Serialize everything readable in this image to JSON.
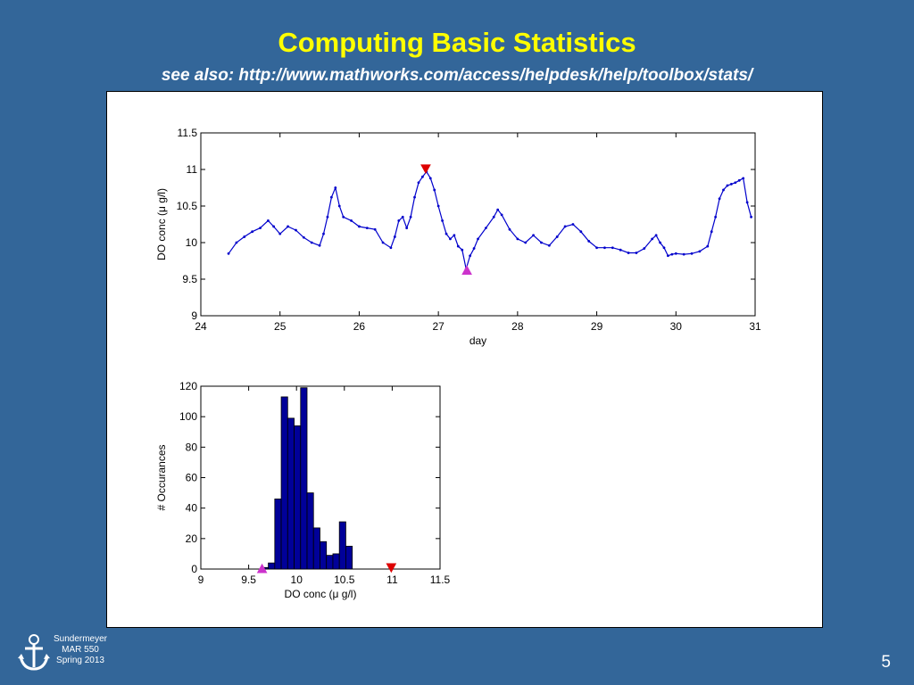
{
  "slide": {
    "title": "Computing Basic Statistics",
    "subtitle": "see also: http://www.mathworks.com/access/helpdesk/help/toolbox/stats/",
    "footer": {
      "line1": "Sundermeyer",
      "line2": "MAR 550",
      "line3": "Spring 2013"
    },
    "page_number": "5",
    "colors": {
      "background": "#336699",
      "title": "#ffff00",
      "series": "#0000cc",
      "max_marker": "#dd0000",
      "min_marker": "#cc33cc",
      "hist_fill": "#000099"
    }
  },
  "chart_data": [
    {
      "type": "line",
      "xlabel": "day",
      "ylabel": "DO conc (μ g/l)",
      "xlim": [
        24,
        31
      ],
      "ylim": [
        9,
        11.5
      ],
      "xticks": [
        "24",
        "25",
        "26",
        "27",
        "28",
        "29",
        "30",
        "31"
      ],
      "yticks": [
        "9",
        "9.5",
        "10",
        "10.5",
        "11",
        "11.5"
      ],
      "grid": false,
      "series": [
        {
          "points": [
            [
              24.35,
              9.85
            ],
            [
              24.45,
              10.0
            ],
            [
              24.55,
              10.08
            ],
            [
              24.65,
              10.15
            ],
            [
              24.75,
              10.2
            ],
            [
              24.85,
              10.3
            ],
            [
              24.92,
              10.22
            ],
            [
              25.0,
              10.12
            ],
            [
              25.1,
              10.22
            ],
            [
              25.2,
              10.17
            ],
            [
              25.3,
              10.07
            ],
            [
              25.4,
              10.0
            ],
            [
              25.5,
              9.96
            ],
            [
              25.55,
              10.12
            ],
            [
              25.6,
              10.35
            ],
            [
              25.65,
              10.62
            ],
            [
              25.7,
              10.75
            ],
            [
              25.75,
              10.5
            ],
            [
              25.8,
              10.35
            ],
            [
              25.9,
              10.3
            ],
            [
              26.0,
              10.22
            ],
            [
              26.1,
              10.2
            ],
            [
              26.2,
              10.18
            ],
            [
              26.3,
              10.0
            ],
            [
              26.4,
              9.93
            ],
            [
              26.45,
              10.08
            ],
            [
              26.5,
              10.3
            ],
            [
              26.55,
              10.35
            ],
            [
              26.6,
              10.2
            ],
            [
              26.65,
              10.35
            ],
            [
              26.7,
              10.62
            ],
            [
              26.75,
              10.82
            ],
            [
              26.8,
              10.9
            ],
            [
              26.85,
              10.97
            ],
            [
              26.9,
              10.88
            ],
            [
              26.95,
              10.72
            ],
            [
              27.0,
              10.5
            ],
            [
              27.05,
              10.3
            ],
            [
              27.1,
              10.12
            ],
            [
              27.15,
              10.05
            ],
            [
              27.2,
              10.1
            ],
            [
              27.25,
              9.95
            ],
            [
              27.3,
              9.9
            ],
            [
              27.35,
              9.64
            ],
            [
              27.4,
              9.82
            ],
            [
              27.45,
              9.92
            ],
            [
              27.5,
              10.05
            ],
            [
              27.6,
              10.2
            ],
            [
              27.7,
              10.35
            ],
            [
              27.75,
              10.45
            ],
            [
              27.8,
              10.38
            ],
            [
              27.9,
              10.18
            ],
            [
              28.0,
              10.05
            ],
            [
              28.1,
              10.0
            ],
            [
              28.2,
              10.1
            ],
            [
              28.3,
              10.0
            ],
            [
              28.4,
              9.96
            ],
            [
              28.5,
              10.08
            ],
            [
              28.6,
              10.22
            ],
            [
              28.7,
              10.25
            ],
            [
              28.8,
              10.15
            ],
            [
              28.9,
              10.02
            ],
            [
              29.0,
              9.93
            ],
            [
              29.1,
              9.93
            ],
            [
              29.2,
              9.93
            ],
            [
              29.3,
              9.9
            ],
            [
              29.4,
              9.86
            ],
            [
              29.5,
              9.86
            ],
            [
              29.6,
              9.92
            ],
            [
              29.7,
              10.05
            ],
            [
              29.75,
              10.1
            ],
            [
              29.8,
              10.0
            ],
            [
              29.85,
              9.93
            ],
            [
              29.9,
              9.82
            ],
            [
              29.95,
              9.84
            ],
            [
              30.0,
              9.85
            ],
            [
              30.1,
              9.84
            ],
            [
              30.2,
              9.85
            ],
            [
              30.3,
              9.88
            ],
            [
              30.4,
              9.95
            ],
            [
              30.45,
              10.15
            ],
            [
              30.5,
              10.35
            ],
            [
              30.55,
              10.6
            ],
            [
              30.6,
              10.72
            ],
            [
              30.65,
              10.78
            ],
            [
              30.7,
              10.8
            ],
            [
              30.75,
              10.82
            ],
            [
              30.8,
              10.85
            ],
            [
              30.85,
              10.88
            ],
            [
              30.9,
              10.55
            ],
            [
              30.95,
              10.35
            ]
          ]
        }
      ],
      "markers": [
        {
          "type": "max",
          "x": 26.84,
          "y": 10.99
        },
        {
          "type": "min",
          "x": 27.36,
          "y": 9.64
        }
      ]
    },
    {
      "type": "bar",
      "xlabel": "DO conc (μ g/l)",
      "ylabel": "# Occurances",
      "xlim": [
        9,
        11.5
      ],
      "ylim": [
        0,
        120
      ],
      "xticks": [
        "9",
        "9.5",
        "10",
        "10.5",
        "11",
        "11.5"
      ],
      "yticks": [
        "0",
        "20",
        "40",
        "60",
        "80",
        "100",
        "120"
      ],
      "grid": false,
      "bin_width": 0.0675,
      "bin_centers": [
        9.6714,
        9.7389,
        9.8064,
        9.8739,
        9.9414,
        10.0089,
        10.0764,
        10.1439,
        10.2114,
        10.2789,
        10.3464,
        10.4139,
        10.4814,
        10.5489,
        10.6164,
        10.6839,
        10.7514,
        10.8189,
        10.8864,
        10.9539
      ],
      "values": [
        1,
        4,
        46,
        113,
        99,
        94,
        119,
        50,
        27,
        18,
        9,
        10,
        31,
        15,
        0,
        0,
        0,
        0,
        0,
        0
      ],
      "markers": [
        {
          "type": "min",
          "x": 9.64,
          "y": 0
        },
        {
          "type": "max",
          "x": 10.99,
          "y": 0
        }
      ]
    }
  ]
}
